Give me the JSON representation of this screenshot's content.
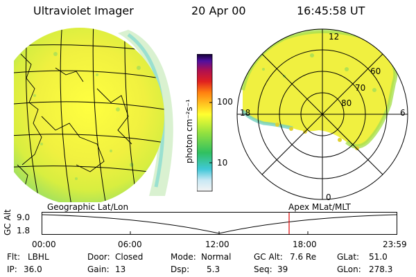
{
  "header": {
    "title": "Ultraviolet Imager",
    "date": "20 Apr 00",
    "time": "16:45:58 UT"
  },
  "colorbar": {
    "unit_label": "photon cm⁻²s⁻¹",
    "tick_labels": [
      "100",
      "10"
    ]
  },
  "polar_plot": {
    "latitude_labels": [
      "60",
      "70",
      "80"
    ],
    "mlt_labels": [
      "12",
      "6",
      "0",
      "18"
    ]
  },
  "projection_labels": {
    "left": "Geographic Lat/Lon",
    "right": "Apex MLat/MLT"
  },
  "timeline": {
    "axis_label": "GC Alt",
    "y_ticks": [
      "9.0",
      "1.8"
    ],
    "x_ticks": [
      "00:00",
      "06:00",
      "12:00",
      "18:00",
      "23:59"
    ],
    "marker_color": "#e00000"
  },
  "status": {
    "row1": [
      {
        "key": "Flt:",
        "value": "LBHL"
      },
      {
        "key": "Door:",
        "value": "Closed"
      },
      {
        "key": "Mode:",
        "value": "Normal"
      },
      {
        "key": "GC Alt:",
        "value": "7.6 Re"
      },
      {
        "key": "GLat:",
        "value": "51.0"
      }
    ],
    "row2": [
      {
        "key": "IP:",
        "value": "36.0"
      },
      {
        "key": "Gain:",
        "value": "13"
      },
      {
        "key": "Dsp:",
        "value": "5.3"
      },
      {
        "key": "Seq:",
        "value": "39"
      },
      {
        "key": "GLon:",
        "value": "278.3"
      }
    ]
  }
}
